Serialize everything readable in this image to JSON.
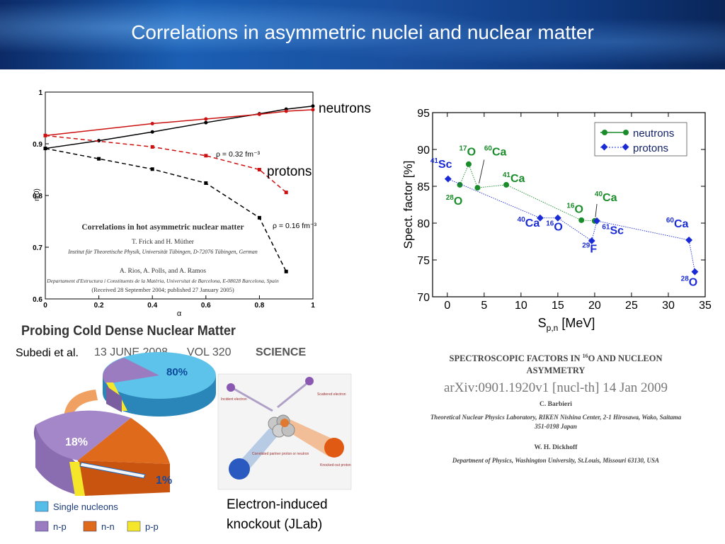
{
  "title": "Correlations in asymmetric nuclei and nuclear matter",
  "left_chart": {
    "type": "line",
    "xlabel": "α",
    "ylabel": "n(0)",
    "xlim": [
      0,
      1
    ],
    "ylim": [
      0.6,
      1
    ],
    "x_ticks": [
      "0",
      "0.2",
      "0.4",
      "0.6",
      "0.8",
      "1"
    ],
    "y_ticks": [
      "0.6",
      "0.7",
      "0.8",
      "0.9",
      "1"
    ],
    "series": [
      {
        "group": "neutrons",
        "density": "0.16",
        "color": "#000000",
        "dashed": false,
        "x": [
          0,
          0.2,
          0.4,
          0.6,
          0.8,
          0.9,
          1.0
        ],
        "y": [
          0.891,
          0.906,
          0.923,
          0.941,
          0.958,
          0.967,
          0.973
        ]
      },
      {
        "group": "neutrons",
        "density": "0.32",
        "color": "#cc1111",
        "dashed": false,
        "x": [
          0,
          0.4,
          0.6,
          0.8,
          0.9,
          1.0
        ],
        "y": [
          0.916,
          0.939,
          0.948,
          0.957,
          0.963,
          0.966
        ]
      },
      {
        "group": "protons",
        "density": "0.32",
        "color": "#cc1111",
        "dashed": true,
        "x": [
          0,
          0.4,
          0.6,
          0.8,
          0.9
        ],
        "y": [
          0.916,
          0.894,
          0.877,
          0.85,
          0.806
        ]
      },
      {
        "group": "protons",
        "density": "0.16",
        "color": "#000000",
        "dashed": true,
        "x": [
          0,
          0.2,
          0.4,
          0.6,
          0.8,
          0.9
        ],
        "y": [
          0.891,
          0.871,
          0.851,
          0.824,
          0.757,
          0.653
        ]
      }
    ],
    "annotations": {
      "rho_high": "ρ = 0.32 fm⁻³",
      "rho_low": "ρ = 0.16 fm⁻³",
      "neutrons": "neutrons",
      "protons": "protons"
    },
    "paper": {
      "title": "Correlations in hot asymmetric nuclear matter",
      "authors1": "T. Frick and H. Müther",
      "inst1": "Institut für Theoretische Physik, Universität Tübingen, D-72076 Tübingen, German",
      "authors2": "A. Rios, A. Polls, and A. Ramos",
      "inst2": "Departament d'Estructura i Constituents de la Matèria, Universitat de Barcelona, E-08028 Barcelona, Spain",
      "received": "(Received 28 September 2004; published 27 January 2005)"
    }
  },
  "right_chart": {
    "type": "scatter",
    "xlabel_main": "S",
    "xlabel_sub": "p,n",
    "xlabel_unit": " [MeV]",
    "ylabel": "Spect. factor [%]",
    "xlim": [
      -2,
      35
    ],
    "ylim": [
      70,
      95
    ],
    "x_ticks": [
      "0",
      "5",
      "10",
      "15",
      "20",
      "25",
      "30",
      "35"
    ],
    "y_ticks": [
      "70",
      "75",
      "80",
      "85",
      "90",
      "95"
    ],
    "legend": {
      "neutrons": "neutrons",
      "protons": "protons",
      "position": "top-right"
    },
    "neutrons": {
      "color": "#1a8c2a",
      "x": [
        1.7,
        2.9,
        4.1,
        8.0,
        18.2,
        20.0
      ],
      "y": [
        85.2,
        88.0,
        84.8,
        85.2,
        80.4,
        80.3
      ]
    },
    "protons": {
      "color": "#1a2bd6",
      "x": [
        0.1,
        12.6,
        15.0,
        19.6,
        20.3,
        32.8,
        33.6
      ],
      "y": [
        86.0,
        80.7,
        80.7,
        77.6,
        80.3,
        77.7,
        73.4
      ]
    },
    "labels": [
      {
        "mass": "17",
        "el": "O",
        "color": "green",
        "x": 1.6,
        "y": 89.2
      },
      {
        "mass": "60",
        "el": "Ca",
        "color": "green",
        "x": 5.0,
        "y": 89.2
      },
      {
        "mass": "28",
        "el": "O",
        "color": "green",
        "x": -0.2,
        "y": 82.5
      },
      {
        "mass": "41",
        "el": "Ca",
        "color": "green",
        "x": 7.5,
        "y": 85.6
      },
      {
        "mass": "16",
        "el": "O",
        "color": "green",
        "x": 16.2,
        "y": 81.4
      },
      {
        "mass": "40",
        "el": "Ca",
        "color": "green",
        "x": 20.0,
        "y": 83.0
      },
      {
        "mass": "41",
        "el": "Sc",
        "color": "blue",
        "x": -2.3,
        "y": 87.5
      },
      {
        "mass": "40",
        "el": "Ca",
        "color": "blue",
        "x": 9.5,
        "y": 79.5
      },
      {
        "mass": "16",
        "el": "O",
        "color": "blue",
        "x": 13.4,
        "y": 79.0
      },
      {
        "mass": "61",
        "el": "Sc",
        "color": "blue",
        "x": 21.0,
        "y": 78.5
      },
      {
        "mass": "29",
        "el": "F",
        "color": "blue",
        "x": 18.3,
        "y": 76.0
      },
      {
        "mass": "60",
        "el": "Ca",
        "color": "blue",
        "x": 29.7,
        "y": 79.4
      },
      {
        "mass": "28",
        "el": "O",
        "color": "blue",
        "x": 31.7,
        "y": 71.5
      }
    ],
    "paper": {
      "title_pre": "SPECTROSCOPIC FACTORS IN ",
      "title_sup": "16",
      "title_post": "O AND NUCLEON",
      "title2": "ASYMMETRY",
      "arxiv": "arXiv:0901.1920v1  [nucl-th]  14 Jan 2009",
      "author1": "C. Barbieri",
      "inst1": "Theoretical Nuclear Physics Laboratory, RIKEN Nishina Center, 2-1 Hirosawa, Wako, Saitama",
      "inst1b": "351-0198 Japan",
      "author2": "W. H. Dickhoff",
      "inst2": "Department of Physics, Washington University, St.Louis, Missouri 63130, USA"
    }
  },
  "science": {
    "headline": "Probing Cold Dense Nuclear Matter",
    "citation": "Subedi et al.",
    "date": "13 JUNE 2008",
    "volume": "VOL 320",
    "journal": "SCIENCE",
    "pie_top_pct": "80%",
    "pie_mid_pct": "18%",
    "pie_small_pct": "1%",
    "legend": {
      "single": "Single nucleons",
      "np": "n-p",
      "nn": "n-n",
      "pp": "p-p"
    },
    "colors": {
      "single": "#55bde8",
      "np": "#9b7cc0",
      "nn": "#e06a1c",
      "pp": "#f5e62a"
    }
  },
  "jlab": {
    "caption_line1": "Electron-induced",
    "caption_line2": "knockout (JLab)",
    "labels": {
      "incident": "Incident electron",
      "scattered": "Scattered electron",
      "knocked": "Knocked-out proton",
      "correlated": "Correlated partner proton or neutron"
    }
  }
}
